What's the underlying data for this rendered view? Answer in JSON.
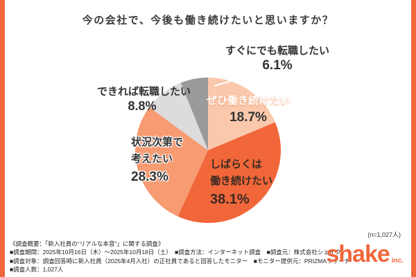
{
  "page": {
    "n_label": "(n=1,027人)"
  },
  "chart_data": {
    "type": "pie",
    "title": "今の会社で、今後も働き続けたいと思いますか？",
    "start_angle_deg": 0,
    "direction": "clockwise",
    "total_percent": 100,
    "sample_size": "n=1,027人",
    "segments": [
      {
        "label": "ぜひ働き続けたい",
        "label_lines": [
          "ぜひ働き続けたい"
        ],
        "value": 18.7,
        "pct_label": "18.7%",
        "color": "#FAC8AB"
      },
      {
        "label": "しばらくは働き続けたい",
        "label_lines": [
          "しばらくは",
          "働き続けたい"
        ],
        "value": 38.1,
        "pct_label": "38.1%",
        "color": "#F2673A"
      },
      {
        "label": "状況次第で考えたい",
        "label_lines": [
          "状況次第で",
          "考えたい"
        ],
        "value": 28.3,
        "pct_label": "28.3%",
        "color": "#F79B72"
      },
      {
        "label": "できれば転職したい",
        "label_lines": [
          "できれば転職したい"
        ],
        "value": 8.8,
        "pct_label": "8.8%",
        "color": "#DCDCDC"
      },
      {
        "label": "すぐにでも転職したい",
        "label_lines": [
          "すぐにでも転職したい"
        ],
        "value": 6.1,
        "pct_label": "6.1%",
        "color": "#9A9A9A"
      }
    ]
  },
  "footer": {
    "lines": [
      "《調査概要：「新入社員の“リアルな本音”」に関する調査》",
      "■調査期間：2025年10月16日（木）～2025年10月18日（土）　■調査方法：インターネット調査　■調査元：株式会社シェイク",
      "■調査対象：調査回答時に新入社員（2025年4月入社）の正社員であると回答したモニター　■モニター提供元：PRIZMAリサーチ",
      "■調査人数：1,027人"
    ]
  },
  "logo": {
    "text": "shake",
    "suffix": "inc."
  },
  "colors": {
    "accent": "#F0673C",
    "text": "#333333"
  }
}
